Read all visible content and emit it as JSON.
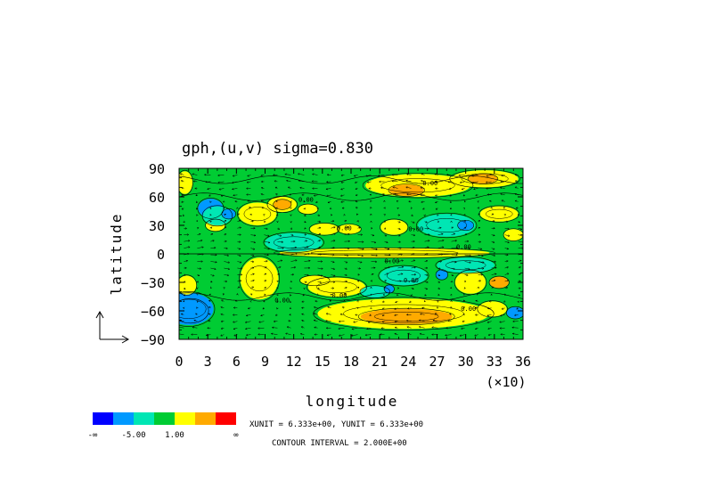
{
  "chart_data": {
    "type": "heatmap",
    "title": "gph,(u,v) sigma=0.830",
    "xlabel": "longitude",
    "ylabel": "latitude",
    "x_scale_note": "(×10)",
    "xlim": [
      0,
      36
    ],
    "ylim": [
      -90,
      90
    ],
    "x_ticks": [
      "0",
      "3",
      "6",
      "9",
      "12",
      "15",
      "18",
      "21",
      "24",
      "27",
      "30",
      "33",
      "36"
    ],
    "y_ticks": [
      "90",
      "60",
      "30",
      "0",
      "-30",
      "-60",
      "-90"
    ],
    "y_tick_values": [
      90,
      60,
      30,
      0,
      -30,
      -60,
      -90
    ],
    "colorbar": {
      "colors": [
        "#0000ff",
        "#0099ff",
        "#00e6b4",
        "#00cc33",
        "#ffff00",
        "#ffaa00",
        "#ff0000"
      ],
      "labels": [
        "-∞",
        "-5.00",
        "1.00",
        "∞"
      ]
    },
    "contour_labels": [
      "0.00",
      "0.00",
      "0.00",
      "0.00",
      "0.00",
      "0.00",
      "0.00",
      "0.00",
      "0.00",
      "0.00"
    ],
    "units_text": "XUNIT = 6.333e+00, YUNIT = 6.333e+00",
    "contour_interval_text": "CONTOUR INTERVAL = 2.000E+00",
    "field_blobs": [
      {
        "lon": 1.2,
        "lat": -60,
        "rl": 1.8,
        "rt": 12,
        "level": 0
      },
      {
        "lon": 1.0,
        "lat": -58,
        "rl": 2.6,
        "rt": 17,
        "level": 1
      },
      {
        "lon": 3.3,
        "lat": 48,
        "rl": 1.3,
        "rt": 10,
        "level": 1
      },
      {
        "lon": 3.8,
        "lat": 30,
        "rl": 1.0,
        "rt": 6,
        "level": 4
      },
      {
        "lon": 0.6,
        "lat": 75,
        "rl": 0.8,
        "rt": 12,
        "level": 4
      },
      {
        "lon": 0.8,
        "lat": -33,
        "rl": 1.0,
        "rt": 10,
        "level": 4
      },
      {
        "lon": 8.4,
        "lat": -26,
        "rl": 2.0,
        "rt": 22,
        "level": 4
      },
      {
        "lon": 8.2,
        "lat": 42,
        "rl": 2.0,
        "rt": 12,
        "level": 4
      },
      {
        "lon": 10.8,
        "lat": 52,
        "rl": 1.5,
        "rt": 8,
        "level": 4
      },
      {
        "lon": 10.8,
        "lat": 52,
        "rl": 0.9,
        "rt": 5,
        "level": 5
      },
      {
        "lon": 13.5,
        "lat": 47,
        "rl": 1.0,
        "rt": 5,
        "level": 4
      },
      {
        "lon": 15.2,
        "lat": 26,
        "rl": 1.5,
        "rt": 6,
        "level": 4
      },
      {
        "lon": 17.8,
        "lat": 26,
        "rl": 1.2,
        "rt": 5,
        "level": 4
      },
      {
        "lon": 22.5,
        "lat": 28,
        "rl": 1.4,
        "rt": 8,
        "level": 4
      },
      {
        "lon": 25.0,
        "lat": 72,
        "rl": 5.5,
        "rt": 12,
        "level": 4
      },
      {
        "lon": 23.8,
        "lat": 67,
        "rl": 1.8,
        "rt": 6,
        "level": 5
      },
      {
        "lon": 32.0,
        "lat": 79,
        "rl": 3.5,
        "rt": 9,
        "level": 4
      },
      {
        "lon": 31.8,
        "lat": 79,
        "rl": 1.5,
        "rt": 5,
        "level": 5
      },
      {
        "lon": 33.5,
        "lat": 42,
        "rl": 2.0,
        "rt": 8,
        "level": 4
      },
      {
        "lon": 35.0,
        "lat": 20,
        "rl": 1.0,
        "rt": 6,
        "level": 4
      },
      {
        "lon": 21.5,
        "lat": 1,
        "rl": 11.0,
        "rt": 5,
        "level": 4
      },
      {
        "lon": 16.5,
        "lat": -35,
        "rl": 3.0,
        "rt": 10,
        "level": 4
      },
      {
        "lon": 14.2,
        "lat": -28,
        "rl": 1.5,
        "rt": 5,
        "level": 4
      },
      {
        "lon": 23.5,
        "lat": -63,
        "rl": 9.0,
        "rt": 16,
        "level": 4
      },
      {
        "lon": 23.8,
        "lat": -66,
        "rl": 4.8,
        "rt": 8,
        "level": 5
      },
      {
        "lon": 30.5,
        "lat": -30,
        "rl": 1.6,
        "rt": 12,
        "level": 4
      },
      {
        "lon": 32.8,
        "lat": -58,
        "rl": 1.5,
        "rt": 8,
        "level": 4
      },
      {
        "lon": 33.5,
        "lat": -30,
        "rl": 1.0,
        "rt": 6,
        "level": 5
      },
      {
        "lon": 4.0,
        "lat": 40,
        "rl": 1.5,
        "rt": 10,
        "level": 2
      },
      {
        "lon": 12.0,
        "lat": 12,
        "rl": 3.0,
        "rt": 10,
        "level": 2
      },
      {
        "lon": 23.5,
        "lat": -23,
        "rl": 2.5,
        "rt": 10,
        "level": 2
      },
      {
        "lon": 30.0,
        "lat": -12,
        "rl": 3.0,
        "rt": 8,
        "level": 2
      },
      {
        "lon": 28.0,
        "lat": 30,
        "rl": 3.0,
        "rt": 12,
        "level": 2
      },
      {
        "lon": 20.5,
        "lat": -40,
        "rl": 1.5,
        "rt": 6,
        "level": 2
      },
      {
        "lon": 5.2,
        "lat": 42,
        "rl": 0.7,
        "rt": 5,
        "level": 1
      },
      {
        "lon": 30.0,
        "lat": 30,
        "rl": 0.8,
        "rt": 5,
        "level": 1
      },
      {
        "lon": 27.5,
        "lat": -22,
        "rl": 0.6,
        "rt": 5,
        "level": 1
      },
      {
        "lon": 22.0,
        "lat": -37,
        "rl": 0.5,
        "rt": 4,
        "level": 1
      },
      {
        "lon": 35.2,
        "lat": -62,
        "rl": 0.9,
        "rt": 6,
        "level": 1
      }
    ]
  }
}
